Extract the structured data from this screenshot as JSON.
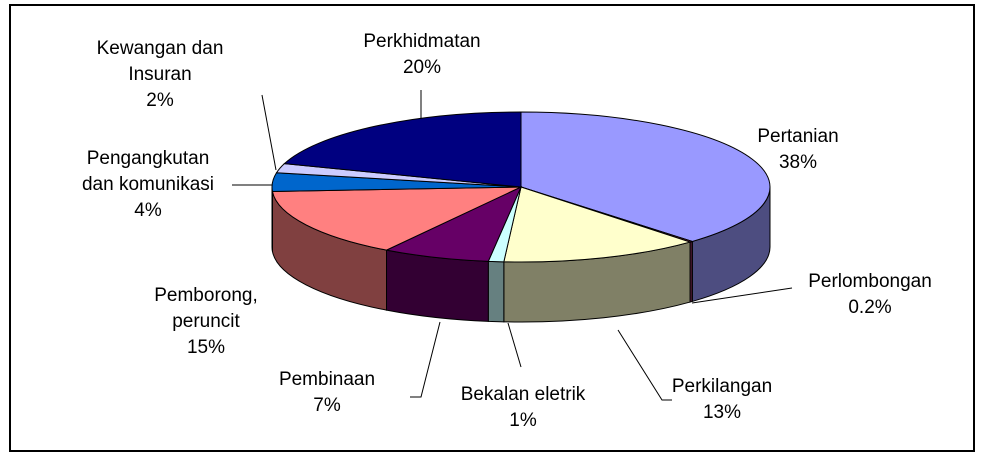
{
  "chart_data": {
    "type": "pie3d",
    "categories": [
      "Pertanian",
      "Perlombongan",
      "Perkilangan",
      "Bekalan eletrik",
      "Pembinaan",
      "Pemborong,\nperuncit",
      "Pengangkutan\ndan komunikasi",
      "Kewangan dan\nInsuran",
      "Perkhidmatan"
    ],
    "values": [
      38,
      0.2,
      13,
      1,
      7,
      15,
      4,
      2,
      20
    ],
    "value_labels": [
      "38%",
      "0.2%",
      "13%",
      "1%",
      "7%",
      "15%",
      "4%",
      "2%",
      "20%"
    ],
    "colors": [
      "#9999ff",
      "#993366",
      "#ffffcc",
      "#ccffff",
      "#660066",
      "#ff8080",
      "#0066cc",
      "#ccccff",
      "#000080"
    ]
  }
}
